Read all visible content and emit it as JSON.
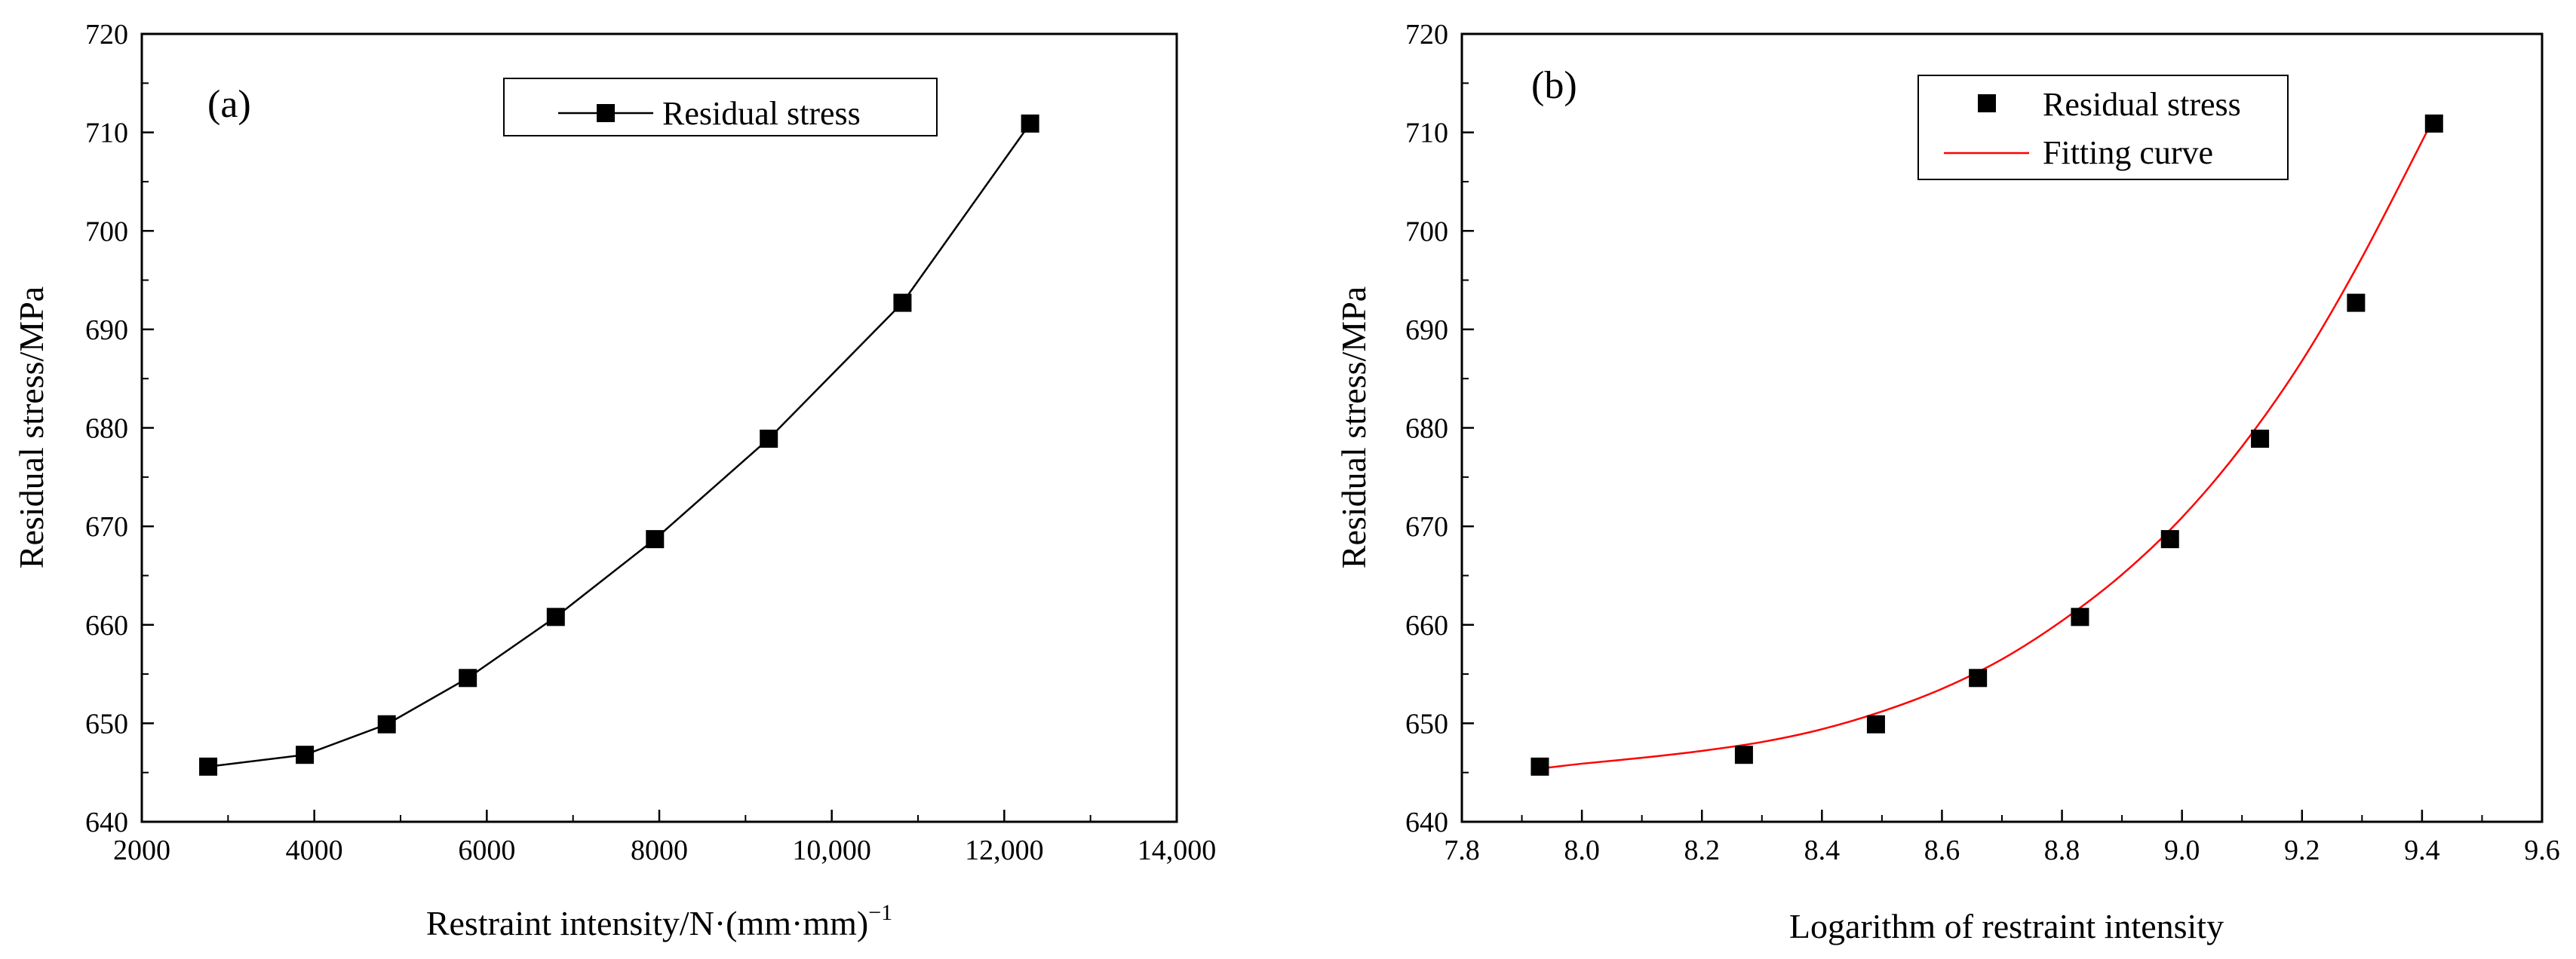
{
  "chart_data": [
    {
      "type": "line",
      "panel_label": "(a)",
      "title": "",
      "xlabel": "Restraint intensity/N·(mm·mm)",
      "xlabel_superscript": "−1",
      "ylabel": "Residual stress/MPa",
      "xlim": [
        2000,
        14000
      ],
      "ylim": [
        640,
        720
      ],
      "xticks": [
        2000,
        4000,
        6000,
        8000,
        10000,
        12000,
        14000
      ],
      "xtick_labels": [
        "2000",
        "4000",
        "6000",
        "8000",
        "10,000",
        "12,000",
        "14,000"
      ],
      "yticks": [
        640,
        650,
        660,
        670,
        680,
        690,
        700,
        710,
        720
      ],
      "ytick_labels": [
        "640",
        "650",
        "660",
        "670",
        "680",
        "690",
        "700",
        "710",
        "720"
      ],
      "legend_position": "top-center",
      "series": [
        {
          "name": "Residual stress",
          "style": "line-with-square-markers",
          "color": "#000000",
          "x": [
            2770,
            3890,
            4840,
            5780,
            6800,
            7950,
            9270,
            10820,
            12300
          ],
          "y": [
            645.6,
            646.8,
            649.9,
            654.6,
            660.8,
            668.7,
            678.9,
            692.7,
            710.9
          ]
        }
      ]
    },
    {
      "type": "scatter",
      "panel_label": "(b)",
      "title": "",
      "xlabel": "Logarithm of restraint intensity",
      "ylabel": "Residual stress/MPa",
      "xlim": [
        7.8,
        9.6
      ],
      "ylim": [
        640,
        720
      ],
      "xticks": [
        7.8,
        8.0,
        8.2,
        8.4,
        8.6,
        8.8,
        9.0,
        9.2,
        9.4,
        9.6
      ],
      "xtick_labels": [
        "7.8",
        "8.0",
        "8.2",
        "8.4",
        "8.6",
        "8.8",
        "9.0",
        "9.2",
        "9.4",
        "9.6"
      ],
      "yticks": [
        640,
        650,
        660,
        670,
        680,
        690,
        700,
        710,
        720
      ],
      "ytick_labels": [
        "640",
        "650",
        "660",
        "670",
        "680",
        "690",
        "700",
        "710",
        "720"
      ],
      "legend_position": "top-center",
      "series": [
        {
          "name": "Residual stress",
          "style": "square-markers",
          "color": "#000000",
          "x": [
            7.93,
            8.27,
            8.49,
            8.66,
            8.83,
            8.98,
            9.13,
            9.29,
            9.42
          ],
          "y": [
            645.6,
            646.8,
            649.9,
            654.6,
            660.8,
            668.7,
            678.9,
            692.7,
            710.9
          ]
        },
        {
          "name": "Fitting curve",
          "style": "line",
          "color": "#ff0000",
          "x": [
            7.93,
            8.0,
            8.1,
            8.2,
            8.3,
            8.4,
            8.5,
            8.6,
            8.7,
            8.8,
            8.9,
            9.0,
            9.1,
            9.2,
            9.3,
            9.42
          ],
          "y": [
            645.4,
            645.9,
            646.5,
            647.2,
            648.1,
            649.4,
            651.2,
            653.5,
            656.5,
            660.4,
            665.1,
            670.9,
            678.1,
            686.8,
            697.3,
            711.5
          ]
        }
      ]
    }
  ]
}
